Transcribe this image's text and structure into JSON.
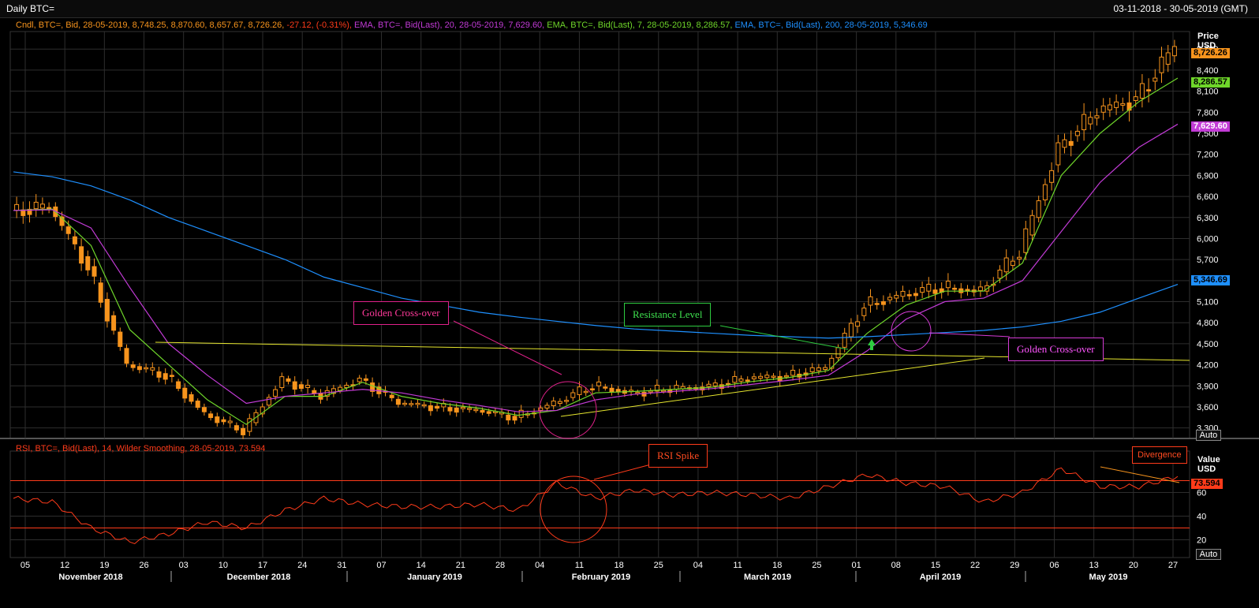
{
  "window": {
    "title": "Daily BTC=",
    "date_range": "03-11-2018 - 30-05-2019 (GMT)"
  },
  "legend": {
    "candle": "Cndl, BTC=, Bid, 28-05-2019, 8,748.25, 8,870.60, 8,657.67, 8,726.26,",
    "candle_change": "-27.12, (-0.31%),",
    "ema20": "EMA, BTC=, Bid(Last),  20, 28-05-2019, 7,629.60,",
    "ema7": "EMA, BTC=, Bid(Last),  7, 28-05-2019, 8,286.57,",
    "ema200": "EMA, BTC=, Bid(Last),  200, 28-05-2019, 5,346.69",
    "rsi": "RSI, BTC=, Bid(Last),  14, Wilder Smoothing, 28-05-2019, 73.594"
  },
  "axes": {
    "price_title": "Price",
    "price_unit": "USD",
    "rsi_title": "Value",
    "rsi_unit": "USD",
    "auto_label": "Auto",
    "price_ticks": [
      "3,300",
      "3,600",
      "3,900",
      "4,200",
      "4,500",
      "4,800",
      "5,100",
      "5,400",
      "5,700",
      "6,000",
      "6,300",
      "6,600",
      "6,900",
      "7,200",
      "7,500",
      "7,800",
      "8,100",
      "8,400",
      "8,700"
    ],
    "rsi_ticks": [
      "20",
      "40",
      "60"
    ],
    "x_ticks": [
      "05",
      "12",
      "19",
      "26",
      "03",
      "10",
      "17",
      "24",
      "31",
      "07",
      "14",
      "21",
      "28",
      "04",
      "11",
      "18",
      "25",
      "04",
      "11",
      "18",
      "25",
      "01",
      "08",
      "15",
      "22",
      "29",
      "06",
      "13",
      "20",
      "27"
    ],
    "months": [
      "November 2018",
      "December 2018",
      "January 2019",
      "February 2019",
      "March 2019",
      "April 2019",
      "May 2019"
    ]
  },
  "price_tags": {
    "last": "8,726.26",
    "ema7": "8,286.57",
    "ema20": "7,629.60",
    "ema200": "5,346.69",
    "rsi": "73.594"
  },
  "annotations": {
    "golden_cross_1": "Golden Cross-over",
    "resistance": "Resistance Level",
    "golden_cross_2": "Golden Cross-over",
    "rsi_spike": "RSI Spike",
    "divergence": "Divergence"
  },
  "colors": {
    "candle": "#f7941d",
    "ema7": "#6fd62a",
    "ema20": "#c23bd6",
    "ema200": "#1e90ff",
    "rsi": "#ff3b1a",
    "trendline": "#e6e62e",
    "grid": "#2e2e2e"
  },
  "chart_data": [
    {
      "type": "candlestick",
      "title": "Daily BTC=",
      "ylabel": "Price USD",
      "ylim": [
        3150,
        8950
      ],
      "x": [
        "2018-11-03",
        "2018-11-10",
        "2018-11-17",
        "2018-11-24",
        "2018-12-01",
        "2018-12-08",
        "2018-12-15",
        "2018-12-22",
        "2018-12-29",
        "2019-01-05",
        "2019-01-12",
        "2019-01-19",
        "2019-01-26",
        "2019-02-02",
        "2019-02-09",
        "2019-02-16",
        "2019-02-23",
        "2019-03-02",
        "2019-03-09",
        "2019-03-16",
        "2019-03-23",
        "2019-03-30",
        "2019-04-06",
        "2019-04-13",
        "2019-04-20",
        "2019-04-27",
        "2019-05-04",
        "2019-05-11",
        "2019-05-18",
        "2019-05-25",
        "2019-05-28"
      ],
      "close": [
        6400,
        6450,
        5600,
        4200,
        4050,
        3500,
        3250,
        4000,
        3750,
        4000,
        3650,
        3600,
        3550,
        3450,
        3650,
        3900,
        3800,
        3850,
        3900,
        4000,
        4050,
        4150,
        5050,
        5200,
        5300,
        5250,
        5800,
        7300,
        7800,
        8000,
        8726
      ],
      "series": [
        {
          "name": "EMA 7",
          "values": [
            6400,
            6420,
            5900,
            4700,
            4200,
            3700,
            3350,
            3750,
            3750,
            3950,
            3750,
            3650,
            3580,
            3480,
            3550,
            3800,
            3820,
            3850,
            3880,
            3960,
            4020,
            4120,
            4650,
            5050,
            5250,
            5250,
            5650,
            6900,
            7500,
            7950,
            8287
          ]
        },
        {
          "name": "EMA 20",
          "values": [
            6400,
            6410,
            6150,
            5300,
            4500,
            4050,
            3650,
            3750,
            3800,
            3850,
            3800,
            3700,
            3620,
            3530,
            3550,
            3700,
            3780,
            3820,
            3860,
            3920,
            3980,
            4050,
            4400,
            4850,
            5100,
            5150,
            5400,
            6100,
            6800,
            7300,
            7630
          ]
        },
        {
          "name": "EMA 200",
          "values": [
            6950,
            6880,
            6750,
            6550,
            6300,
            6100,
            5900,
            5700,
            5450,
            5300,
            5150,
            5050,
            4950,
            4880,
            4820,
            4760,
            4710,
            4680,
            4650,
            4620,
            4600,
            4580,
            4600,
            4630,
            4660,
            4690,
            4740,
            4820,
            4950,
            5150,
            5347
          ]
        }
      ],
      "annotations": [
        "Golden Cross-over",
        "Resistance Level",
        "Golden Cross-over"
      ]
    },
    {
      "type": "line",
      "title": "RSI, BTC=, Bid(Last), 14, Wilder Smoothing",
      "ylabel": "Value USD",
      "ylim": [
        5,
        95
      ],
      "levels": [
        30,
        70
      ],
      "series": [
        {
          "name": "RSI",
          "values": [
            55,
            52,
            30,
            18,
            25,
            35,
            30,
            45,
            55,
            50,
            48,
            48,
            50,
            45,
            68,
            55,
            62,
            58,
            60,
            58,
            55,
            65,
            75,
            68,
            65,
            52,
            60,
            80,
            65,
            65,
            73.6
          ]
        }
      ],
      "annotations": [
        "RSI Spike",
        "Divergence"
      ]
    }
  ]
}
